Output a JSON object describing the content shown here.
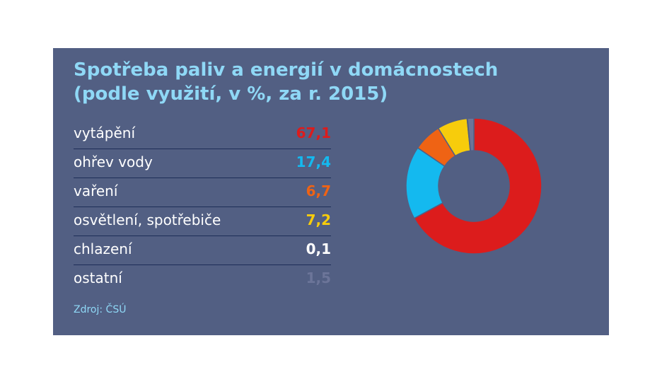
{
  "title_line1": "Spotřeba paliv a energií v domácnostech",
  "title_line2": "(podle využití, v %, za r. 2015)",
  "source": "Zdroj: ČSÚ",
  "chart_data": {
    "type": "pie",
    "variant": "donut",
    "title": "Spotřeba paliv a energií v domácnostech (podle využití, v %, za r. 2015)",
    "unit": "%",
    "categories": [
      "vytápění",
      "ohřev vody",
      "vaření",
      "osvětlení, spotřebiče",
      "chlazení",
      "ostatní"
    ],
    "values": [
      67.1,
      17.4,
      6.7,
      7.2,
      0.1,
      1.5
    ],
    "value_labels": [
      "67,1",
      "17,4",
      "6,7",
      "7,2",
      "0,1",
      "1,5"
    ],
    "colors": [
      "#dc1c1c",
      "#14b9ef",
      "#ef6314",
      "#f7cc0c",
      "#ffffff",
      "#6c7599"
    ]
  }
}
